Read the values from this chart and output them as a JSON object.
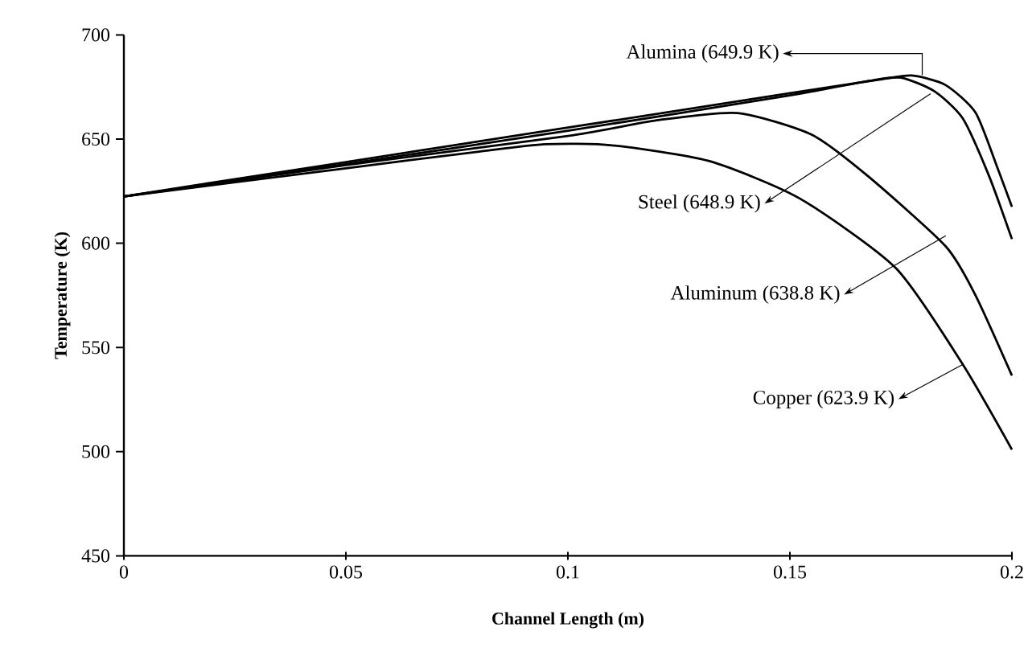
{
  "chart_data": {
    "type": "line",
    "xlabel": "Channel Length (m)",
    "ylabel": "Temperature (K)",
    "xlim": [
      0,
      0.2
    ],
    "ylim": [
      450,
      700
    ],
    "xticks": [
      0,
      0.05,
      0.1,
      0.15,
      0.2
    ],
    "yticks": [
      450,
      500,
      550,
      600,
      650,
      700
    ],
    "series": [
      {
        "color": "#000000",
        "x": [
          0,
          0.05,
          0.1,
          0.15,
          0.17,
          0.1774,
          0.185,
          0.1918,
          0.1966,
          0.2
        ],
        "values": [
          622.5,
          639,
          655.5,
          672,
          678.5,
          680.5,
          676,
          662.7,
          637,
          617.5
        ]
      },
      {
        "color": "#000000",
        "x": [
          0,
          0.05,
          0.1,
          0.15,
          0.168,
          0.175,
          0.1825,
          0.1889,
          0.1949,
          0.2
        ],
        "values": [
          622.5,
          638,
          654,
          671,
          678,
          679.5,
          673,
          660,
          632,
          602
        ]
      },
      {
        "color": "#000000",
        "x": [
          0,
          0.05,
          0.1,
          0.12,
          0.1382,
          0.155,
          0.1677,
          0.1851,
          0.1918,
          0.2
        ],
        "values": [
          622.5,
          637.5,
          651.5,
          659,
          662.5,
          652,
          632,
          598.5,
          575,
          536.5
        ]
      },
      {
        "color": "#000000",
        "x": [
          0,
          0.05,
          0.08,
          0.095,
          0.11,
          0.1317,
          0.1522,
          0.1739,
          0.1889,
          0.2
        ],
        "values": [
          622.5,
          636,
          644,
          647.5,
          647,
          639.5,
          621.5,
          588,
          542,
          501
        ]
      }
    ],
    "annotations": [
      {
        "text": "Alumina (649.9 K)",
        "x": 0.1798,
        "y": 680.7
      },
      {
        "text": "Steel (648.9 K)",
        "x": 0.1817,
        "y": 671.8
      },
      {
        "text": "Aluminum (638.8 K)",
        "x": 0.1851,
        "y": 603.6
      },
      {
        "text": "Copper (623.9 K)",
        "x": 0.1889,
        "y": 541.8
      }
    ]
  }
}
